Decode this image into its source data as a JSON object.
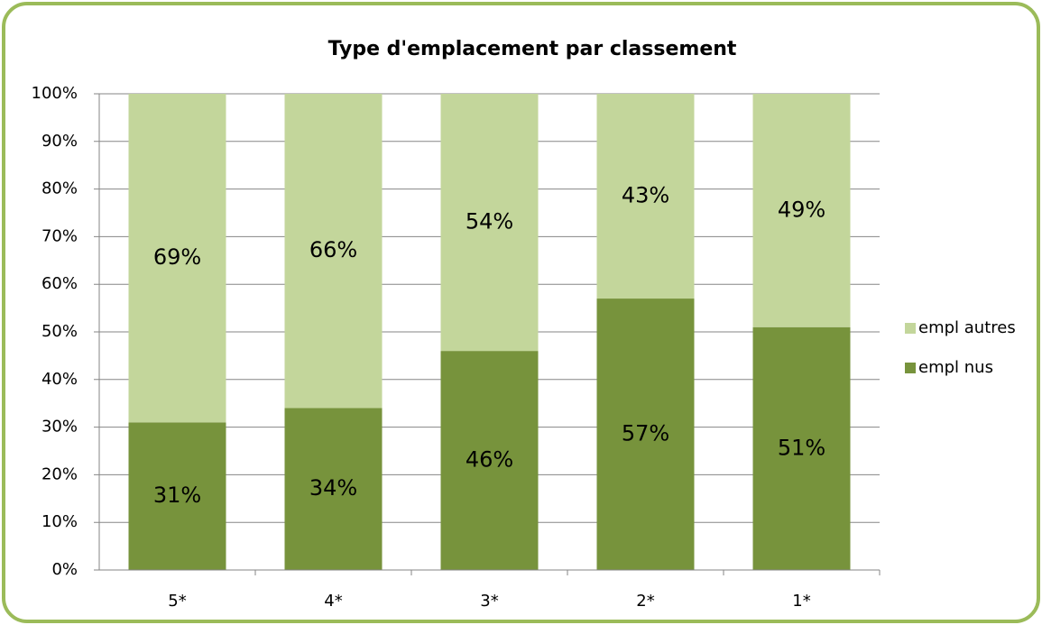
{
  "chart_data": {
    "type": "stacked_bar",
    "title": "Type d'emplacement par classement",
    "categories": [
      "5*",
      "4*",
      "3*",
      "2*",
      "1*"
    ],
    "series": [
      {
        "name": "empl nus",
        "color": "#77933c",
        "values": [
          31,
          34,
          46,
          57,
          51
        ],
        "value_labels": [
          "31%",
          "34%",
          "46%",
          "57%",
          "51%"
        ]
      },
      {
        "name": "empl autres",
        "color": "#c3d69b",
        "values": [
          69,
          66,
          54,
          43,
          49
        ],
        "value_labels": [
          "69%",
          "66%",
          "54%",
          "43%",
          "49%"
        ]
      }
    ],
    "ylim": [
      0,
      100
    ],
    "yticks": [
      {
        "value": 0,
        "label": "0%"
      },
      {
        "value": 10,
        "label": "10%"
      },
      {
        "value": 20,
        "label": "20%"
      },
      {
        "value": 30,
        "label": "30%"
      },
      {
        "value": 40,
        "label": "40%"
      },
      {
        "value": 50,
        "label": "50%"
      },
      {
        "value": 60,
        "label": "60%"
      },
      {
        "value": 70,
        "label": "70%"
      },
      {
        "value": 80,
        "label": "80%"
      },
      {
        "value": 90,
        "label": "90%"
      },
      {
        "value": 100,
        "label": "100%"
      }
    ],
    "grid": true,
    "legend": "right"
  }
}
